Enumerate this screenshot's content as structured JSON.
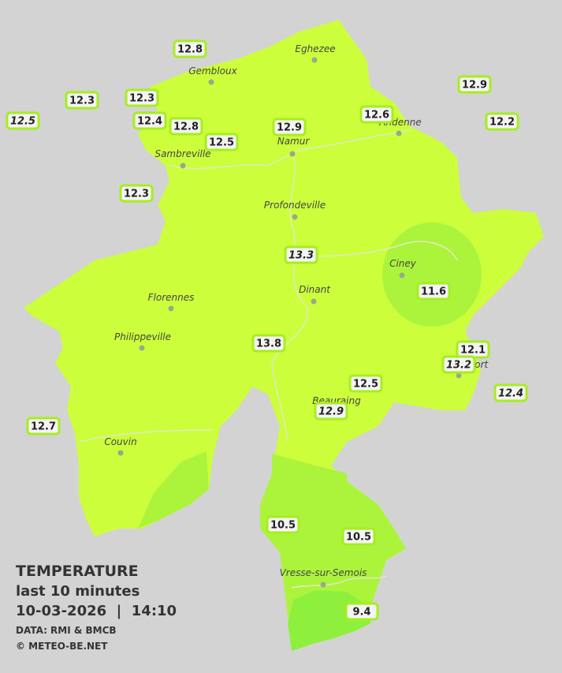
{
  "cities": [
    {
      "label": "Eghezee"
    },
    {
      "label": "Gembloux"
    },
    {
      "label": "Andenne"
    },
    {
      "label": "Namur"
    },
    {
      "label": "Sambreville"
    },
    {
      "label": "Profondeville"
    },
    {
      "label": "Ciney"
    },
    {
      "label": "Dinant"
    },
    {
      "label": "Florennes"
    },
    {
      "label": "Philippeville"
    },
    {
      "label": "Rochefort"
    },
    {
      "label": "Beauraing"
    },
    {
      "label": "Couvin"
    },
    {
      "label": "Vresse-sur-Semois"
    }
  ],
  "stations": [
    {
      "label": "12.8"
    },
    {
      "label": "12.3"
    },
    {
      "label": "12.3"
    },
    {
      "label": "12.5",
      "italic": true
    },
    {
      "label": "12.4"
    },
    {
      "label": "12.8"
    },
    {
      "label": "12.5"
    },
    {
      "label": "12.9"
    },
    {
      "label": "12.6"
    },
    {
      "label": "12.9"
    },
    {
      "label": "12.2"
    },
    {
      "label": "12.3"
    },
    {
      "label": "13.3",
      "italic": true
    },
    {
      "label": "11.6"
    },
    {
      "label": "13.8"
    },
    {
      "label": "12.1"
    },
    {
      "label": "13.2",
      "italic": true
    },
    {
      "label": "12.5"
    },
    {
      "label": "12.9",
      "italic": true
    },
    {
      "label": "12.4",
      "italic": true
    },
    {
      "label": "12.7"
    },
    {
      "label": "10.5"
    },
    {
      "label": "10.5"
    },
    {
      "label": "9.4"
    }
  ],
  "info": {
    "title": "TEMPERATURE",
    "period": "last 10 minutes",
    "timestamp": "10-03-2026  |  14:10",
    "source": "DATA: RMI & BMCB",
    "copyright": "© METEO-BE.NET"
  }
}
